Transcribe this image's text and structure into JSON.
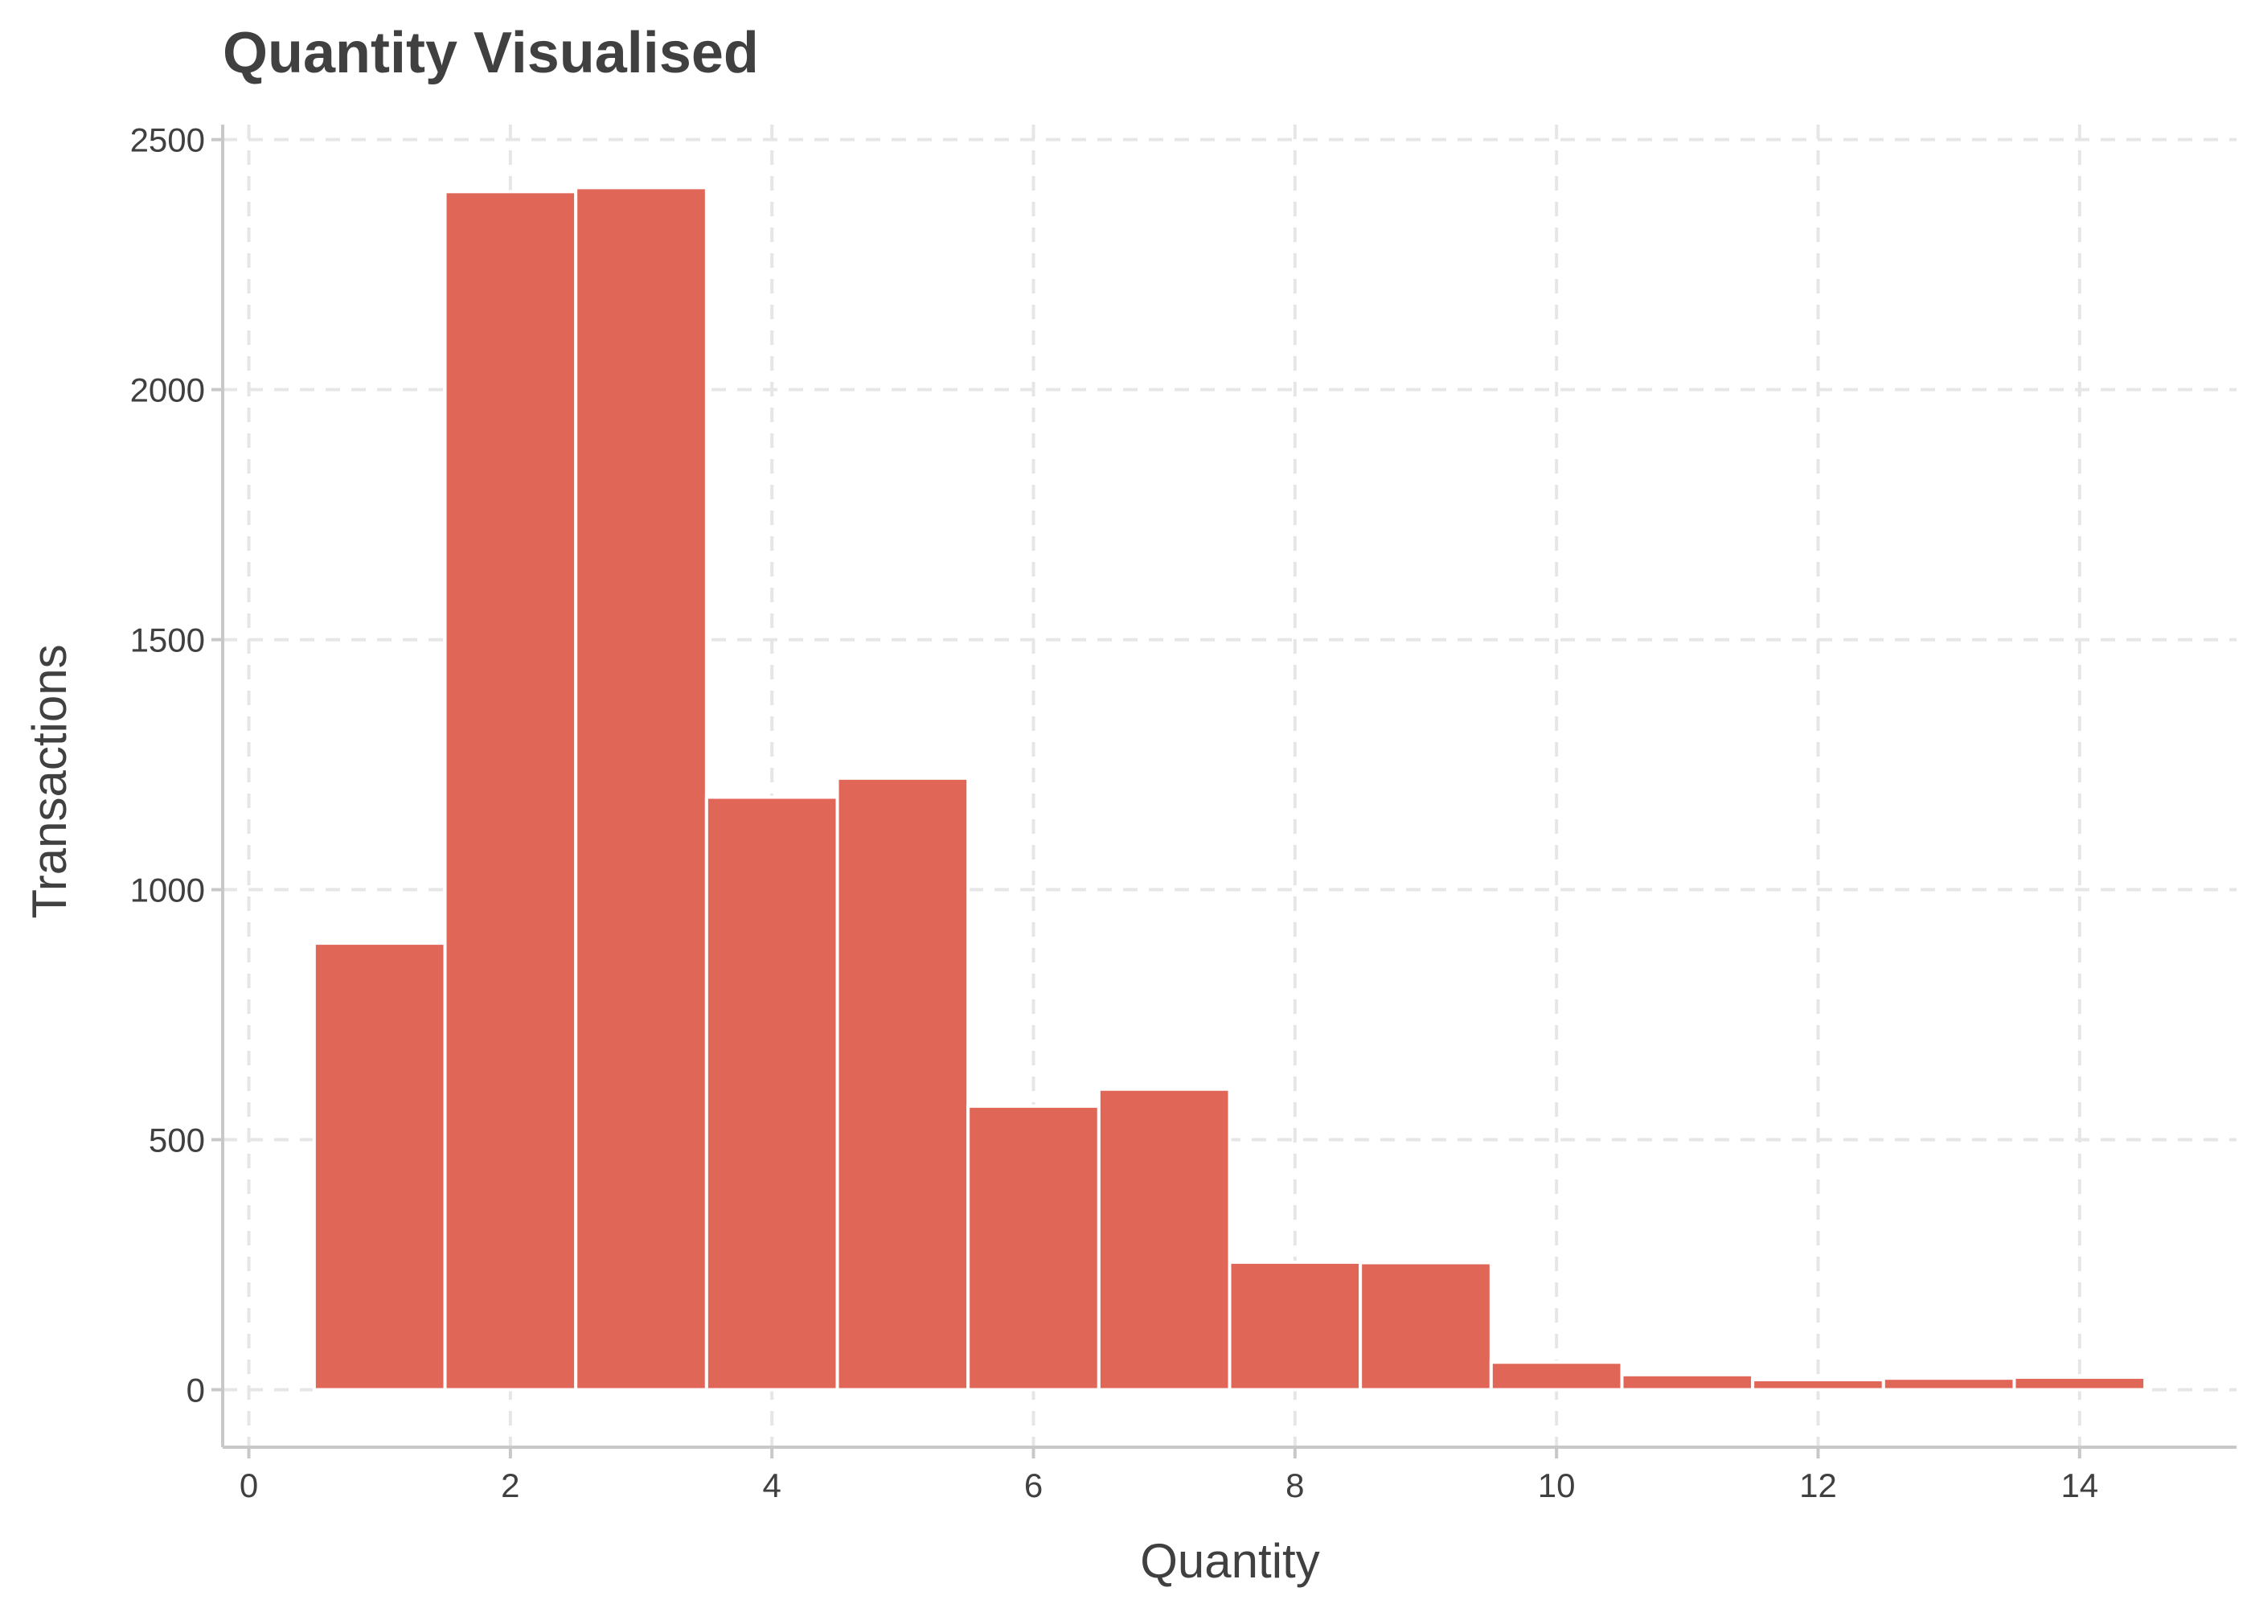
{
  "chart_data": {
    "type": "bar",
    "title": "Quantity Visualised",
    "xlabel": "Quantity",
    "ylabel": "Transactions",
    "x": [
      1,
      2,
      3,
      4,
      5,
      6,
      7,
      8,
      9,
      10,
      11,
      12,
      13,
      14
    ],
    "values": [
      893,
      2396,
      2404,
      1185,
      1223,
      567,
      601,
      255,
      254,
      55,
      30,
      20,
      23,
      25
    ],
    "bin_width": 1,
    "xlim": [
      -0.2,
      15.2
    ],
    "ylim": [
      -115,
      2530
    ],
    "xticks": [
      0,
      2,
      4,
      6,
      8,
      10,
      12,
      14
    ],
    "yticks": [
      0,
      500,
      1000,
      1500,
      2000,
      2500
    ],
    "grid": true,
    "legend": "none",
    "colors": {
      "bar_fill": "#e06657",
      "bar_edge": "#ffffff",
      "grid": "#e6e6e6",
      "axis": "#c8c8c8",
      "text": "#404040"
    }
  }
}
